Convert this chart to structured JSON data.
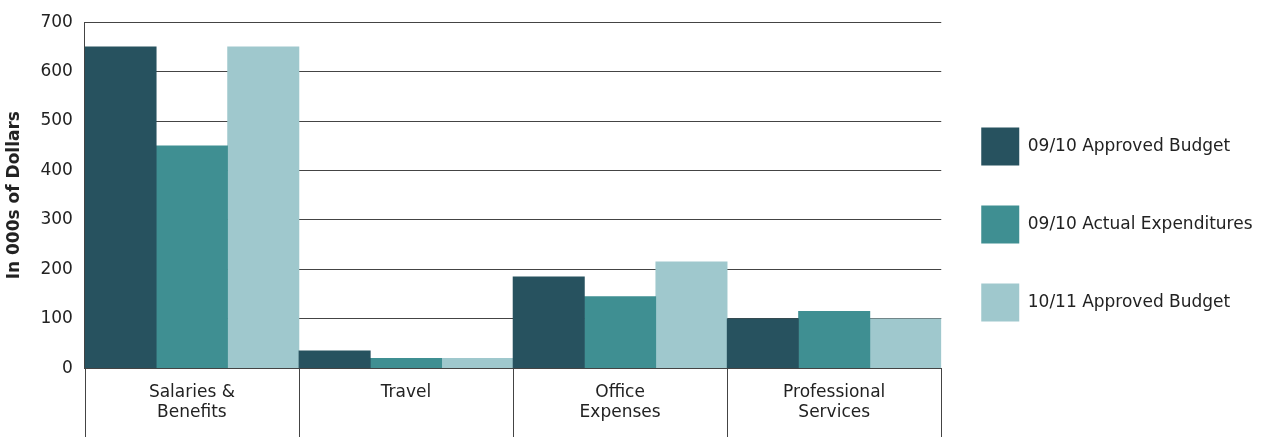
{
  "chart_data": {
    "type": "bar",
    "ylabel": "In 000s of Dollars",
    "categories": [
      "Salaries & Benefits",
      "Travel",
      "Office Expenses",
      "Professional Services"
    ],
    "series": [
      {
        "name": "09/10 Approved Budget",
        "color": "#27525f",
        "values": [
          650,
          35,
          185,
          100
        ]
      },
      {
        "name": "09/10 Actual Expenditures",
        "color": "#3f8f92",
        "values": [
          450,
          20,
          145,
          115
        ]
      },
      {
        "name": "10/11 Approved Budget",
        "color": "#9fc8cd",
        "values": [
          650,
          20,
          215,
          100
        ]
      }
    ],
    "ylim": [
      0,
      700
    ],
    "yticks": [
      0,
      100,
      200,
      300,
      400,
      500,
      600,
      700
    ],
    "grid": "y",
    "legend": "right"
  }
}
